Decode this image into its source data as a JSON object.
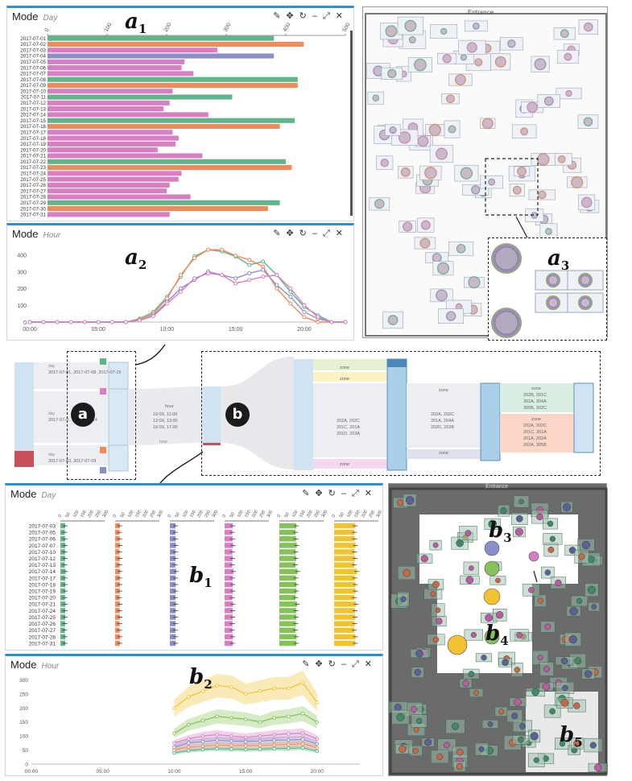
{
  "panel_labels": {
    "a1": "a",
    "a1_sub": "1",
    "a2": "a",
    "a2_sub": "2",
    "a3": "a",
    "a3_sub": "3",
    "b1": "b",
    "b1_sub": "1",
    "b2": "b",
    "b2_sub": "2",
    "b3": "b",
    "b3_sub": "3",
    "b4": "b",
    "b4_sub": "4",
    "b5": "b",
    "b5_sub": "5"
  },
  "badges": {
    "a": "a",
    "b": "b"
  },
  "toolbar_icons": [
    "pencil-icon",
    "move-icon",
    "refresh-icon",
    "minimize-icon",
    "expand-icon",
    "close-icon"
  ],
  "panels": {
    "a1": {
      "title": "Mode",
      "subtitle": "Day"
    },
    "a2": {
      "title": "Mode",
      "subtitle": "Hour"
    },
    "b1": {
      "title": "Mode",
      "subtitle": "Day"
    },
    "b2": {
      "title": "Mode",
      "subtitle": "Hour"
    }
  },
  "floor": {
    "entrance_label": "Entrance"
  },
  "colors": {
    "green": "#5fb48a",
    "orange": "#ee8a5b",
    "purple": "#8a8fc7",
    "pink": "#d77fc2",
    "lime": "#86c25a",
    "yellow": "#f1c232",
    "accent": "#2f8fd0"
  },
  "chart_data": [
    {
      "type": "bar",
      "id": "a1",
      "xticks": [
        0,
        100,
        200,
        300,
        400,
        500
      ],
      "xlim": [
        0,
        500
      ],
      "categories": [
        "2017-07-01",
        "2017-07-02",
        "2017-07-03",
        "2017-07-04",
        "2017-07-05",
        "2017-07-06",
        "2017-07-07",
        "2017-07-08",
        "2017-07-09",
        "2017-07-10",
        "2017-07-11",
        "2017-07-12",
        "2017-07-13",
        "2017-07-14",
        "2017-07-15",
        "2017-07-16",
        "2017-07-17",
        "2017-07-18",
        "2017-07-19",
        "2017-07-20",
        "2017-07-21",
        "2017-07-22",
        "2017-07-23",
        "2017-07-24",
        "2017-07-25",
        "2017-07-26",
        "2017-07-27",
        "2017-07-28",
        "2017-07-29",
        "2017-07-30",
        "2017-07-31"
      ],
      "values": [
        380,
        430,
        285,
        380,
        230,
        225,
        245,
        420,
        420,
        210,
        310,
        205,
        195,
        270,
        415,
        390,
        210,
        220,
        215,
        185,
        260,
        400,
        410,
        225,
        220,
        205,
        200,
        240,
        390,
        370,
        205
      ],
      "colors": [
        "green",
        "orange",
        "pink",
        "purple",
        "pink",
        "pink",
        "pink",
        "green",
        "orange",
        "pink",
        "green",
        "pink",
        "pink",
        "pink",
        "green",
        "orange",
        "pink",
        "pink",
        "pink",
        "pink",
        "pink",
        "green",
        "orange",
        "pink",
        "pink",
        "pink",
        "pink",
        "pink",
        "green",
        "orange",
        "pink"
      ]
    },
    {
      "type": "line",
      "id": "a2",
      "x": [
        "00:00",
        "01:00",
        "02:00",
        "03:00",
        "04:00",
        "05:00",
        "06:00",
        "07:00",
        "08:00",
        "09:00",
        "10:00",
        "11:00",
        "12:00",
        "13:00",
        "14:00",
        "15:00",
        "16:00",
        "17:00",
        "18:00",
        "19:00",
        "20:00",
        "21:00",
        "22:00",
        "23:00"
      ],
      "xticks": [
        "00:00",
        "05:00",
        "10:00",
        "15:00",
        "20:00"
      ],
      "yticks": [
        0,
        100,
        200,
        300,
        400
      ],
      "ylim": [
        0,
        450
      ],
      "series": [
        {
          "color": "green",
          "values": [
            0,
            0,
            0,
            0,
            0,
            0,
            0,
            0,
            20,
            60,
            150,
            270,
            390,
            430,
            420,
            390,
            340,
            360,
            280,
            180,
            90,
            40,
            0,
            0
          ]
        },
        {
          "color": "orange",
          "values": [
            0,
            0,
            0,
            0,
            0,
            0,
            0,
            0,
            15,
            50,
            140,
            280,
            380,
            430,
            430,
            395,
            370,
            330,
            200,
            110,
            30,
            0,
            0,
            0
          ]
        },
        {
          "color": "purple",
          "values": [
            0,
            0,
            0,
            0,
            0,
            0,
            0,
            0,
            10,
            40,
            120,
            200,
            250,
            300,
            280,
            260,
            290,
            310,
            220,
            150,
            60,
            20,
            0,
            0
          ]
        },
        {
          "color": "pink",
          "values": [
            0,
            0,
            0,
            0,
            0,
            0,
            0,
            0,
            10,
            35,
            110,
            180,
            260,
            290,
            280,
            230,
            250,
            270,
            280,
            200,
            100,
            30,
            0,
            0
          ]
        }
      ]
    },
    {
      "type": "bar",
      "id": "b1",
      "categories": [
        "2017-07-03",
        "2017-07-05",
        "2017-07-06",
        "2017-07-07",
        "2017-07-10",
        "2017-07-12",
        "2017-07-13",
        "2017-07-14",
        "2017-07-17",
        "2017-07-18",
        "2017-07-19",
        "2017-07-20",
        "2017-07-21",
        "2017-07-24",
        "2017-07-25",
        "2017-07-26",
        "2017-07-27",
        "2017-07-28",
        "2017-07-31"
      ],
      "axis_ticks": [
        {
          "labels": [
            "0",
            "50",
            "100",
            "150",
            "200",
            "250",
            "300"
          ],
          "max": 300
        },
        {
          "labels": [
            "0",
            "50",
            "100",
            "150",
            "200",
            "250",
            "300"
          ],
          "max": 300
        },
        {
          "labels": [
            "0",
            "50",
            "100",
            "150",
            "200",
            "250",
            "300"
          ],
          "max": 300
        },
        {
          "labels": [
            "0",
            "50",
            "100",
            "150",
            "200",
            "250",
            "300"
          ],
          "max": 300
        },
        {
          "labels": [
            "0",
            "50",
            "100",
            "150",
            "200",
            "250",
            "300"
          ],
          "max": 300
        },
        {
          "labels": [
            "0",
            "50",
            "100",
            "150",
            "200",
            "250",
            "300"
          ],
          "max": 300
        }
      ],
      "series": [
        {
          "color": "green",
          "values": [
            60,
            55,
            58,
            62,
            57,
            59,
            55,
            65,
            58,
            60,
            61,
            57,
            62,
            59,
            60,
            58,
            56,
            61,
            60
          ]
        },
        {
          "color": "orange",
          "values": [
            58,
            55,
            57,
            60,
            55,
            58,
            56,
            62,
            57,
            59,
            58,
            55,
            60,
            57,
            59,
            56,
            55,
            60,
            58
          ]
        },
        {
          "color": "purple",
          "values": [
            70,
            68,
            72,
            75,
            69,
            71,
            67,
            78,
            70,
            72,
            73,
            69,
            74,
            71,
            72,
            70,
            68,
            73,
            72
          ]
        },
        {
          "color": "pink",
          "values": [
            100,
            95,
            98,
            105,
            96,
            99,
            94,
            110,
            98,
            101,
            102,
            96,
            104,
            99,
            100,
            97,
            95,
            102,
            100
          ]
        },
        {
          "color": "lime",
          "values": [
            210,
            200,
            205,
            215,
            202,
            207,
            198,
            225,
            205,
            210,
            212,
            200,
            218,
            206,
            208,
            203,
            199,
            211,
            209
          ]
        },
        {
          "color": "yellow",
          "values": [
            260,
            250,
            255,
            265,
            252,
            258,
            248,
            280,
            255,
            262,
            264,
            250,
            270,
            257,
            259,
            254,
            249,
            263,
            260
          ]
        }
      ]
    },
    {
      "type": "area",
      "id": "b2",
      "xticks": [
        "00:00",
        "05:00",
        "10:00",
        "15:00",
        "20:00"
      ],
      "yticks": [
        0,
        50,
        100,
        150,
        200,
        250,
        300
      ],
      "ylim": [
        0,
        310
      ],
      "x": [
        "10:00",
        "11:00",
        "12:00",
        "13:00",
        "14:00",
        "15:00",
        "16:00",
        "17:00",
        "18:00",
        "19:00",
        "20:00"
      ],
      "series": [
        {
          "color": "yellow",
          "values": [
            200,
            240,
            260,
            280,
            275,
            250,
            260,
            270,
            270,
            290,
            220
          ]
        },
        {
          "color": "lime",
          "values": [
            110,
            140,
            155,
            170,
            165,
            160,
            150,
            165,
            170,
            180,
            150
          ]
        },
        {
          "color": "pink",
          "values": [
            75,
            90,
            100,
            105,
            100,
            95,
            100,
            105,
            108,
            110,
            90
          ]
        },
        {
          "color": "purple",
          "values": [
            60,
            75,
            80,
            85,
            82,
            80,
            82,
            85,
            86,
            88,
            72
          ]
        },
        {
          "color": "orange",
          "values": [
            50,
            60,
            64,
            68,
            66,
            65,
            66,
            68,
            70,
            72,
            58
          ]
        },
        {
          "color": "green",
          "values": [
            40,
            48,
            52,
            55,
            53,
            52,
            53,
            55,
            56,
            58,
            46
          ]
        }
      ]
    }
  ],
  "sankey": {
    "a_labels": [
      "2017-07-01, 2017-07-08, 2017-07-15",
      "2017-07-0..., 2017-07-14",
      "2017-07-02, 2017-07-09"
    ],
    "a_small": [
      "day",
      "day",
      "day"
    ],
    "mid_label": "hour",
    "mid_values": "10:00, 11:00\n12:00, 13:00\n16:00, 17:00",
    "b_labels": [
      "zone",
      "zone",
      "zone",
      "zone",
      "zone",
      "zone"
    ],
    "b_zone_text_1": "202A, 202C\n201C, 201A\n201D, 203A",
    "b_zone_text_2": "202A, 202C\n201A, 204A\n202D, 202B",
    "b_zone_text_3": "202B, 201C\n302A, 304A\n305B, 302C",
    "b_zone_text_4": "202A, 202C\n201C, 201A\n201A, 202A\n202A, 305B"
  }
}
